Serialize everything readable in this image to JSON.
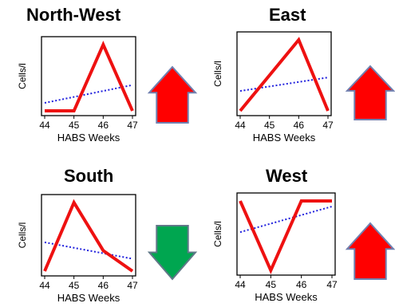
{
  "colors": {
    "series": "#ee1111",
    "trend": "#2020dd",
    "arrow_up_fill": "#ff0000",
    "arrow_up_stroke": "#7080b0",
    "arrow_down_fill": "#00a650",
    "arrow_down_stroke": "#607888"
  },
  "chart_data": [
    {
      "type": "line",
      "title": "North-West",
      "xlabel": "HABS Weeks",
      "ylabel": "Cells/l",
      "x": [
        44,
        45,
        46,
        47
      ],
      "values": [
        0,
        0,
        1,
        0
      ],
      "ylim": [
        0,
        1
      ],
      "trend": [
        0.12,
        0.39
      ],
      "trend_style": "dotted",
      "arrow": "up",
      "arrow_icon": "red-up-arrow-icon"
    },
    {
      "type": "line",
      "title": "East",
      "xlabel": "HABS Weeks",
      "ylabel": "Cells/l",
      "x": [
        44,
        45,
        46,
        47
      ],
      "values": [
        0,
        0.5,
        1,
        0
      ],
      "ylim": [
        0,
        1
      ],
      "trend": [
        0.28,
        0.47
      ],
      "trend_style": "dotted",
      "arrow": "up",
      "arrow_icon": "red-up-arrow-icon"
    },
    {
      "type": "line",
      "title": "South",
      "xlabel": "HABS Weeks",
      "ylabel": "Cells/l",
      "x": [
        44,
        45,
        46,
        47
      ],
      "values": [
        0,
        1,
        0.3,
        0
      ],
      "ylim": [
        0,
        1
      ],
      "trend": [
        0.42,
        0.18
      ],
      "trend_style": "dotted",
      "arrow": "down",
      "arrow_icon": "green-down-arrow-icon"
    },
    {
      "type": "line",
      "title": "West",
      "xlabel": "HABS Weeks",
      "ylabel": "Cells/l",
      "x": [
        44,
        45,
        46,
        47
      ],
      "values": [
        1,
        0,
        1,
        1
      ],
      "ylim": [
        0,
        1
      ],
      "trend": [
        0.55,
        0.92
      ],
      "trend_style": "dotted",
      "arrow": "up",
      "arrow_icon": "red-up-arrow-icon"
    }
  ]
}
